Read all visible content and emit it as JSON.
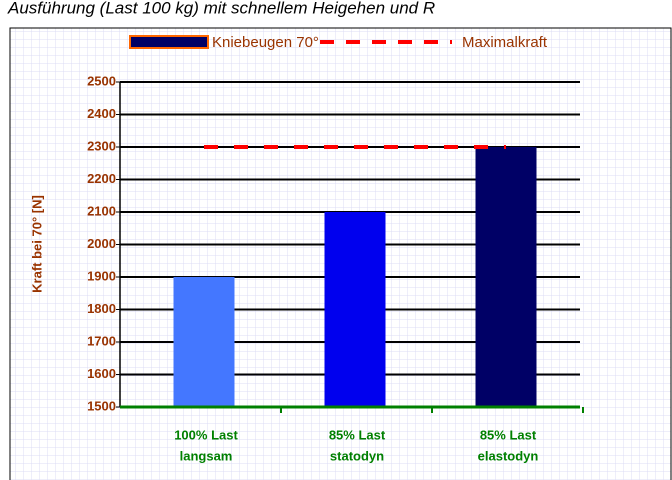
{
  "chart_data": {
    "type": "bar",
    "title": "Ausführung (Last 100 kg) mit schnellem Heigehen und R",
    "y_label": "Kraft bei 70° [N]",
    "categories": [
      [
        "100% Last",
        "langsam"
      ],
      [
        "85% Last",
        "statodyn"
      ],
      [
        "85% Last",
        "elastodyn"
      ]
    ],
    "series": [
      {
        "name": "Kniebeugen 70°",
        "color": "#000066",
        "bar_colors": [
          "#4477ff",
          "#0000ee",
          "#000066"
        ],
        "values": [
          1900,
          2100,
          2300
        ]
      },
      {
        "name": "Maximalkraft",
        "type": "line",
        "color": "#ff0000",
        "values": [
          2300,
          2300,
          2300
        ]
      }
    ],
    "ylim": [
      1500,
      2500
    ],
    "yticks": [
      1500,
      1600,
      1700,
      1800,
      1900,
      2000,
      2100,
      2200,
      2300,
      2400,
      2500
    ],
    "grid": true
  }
}
